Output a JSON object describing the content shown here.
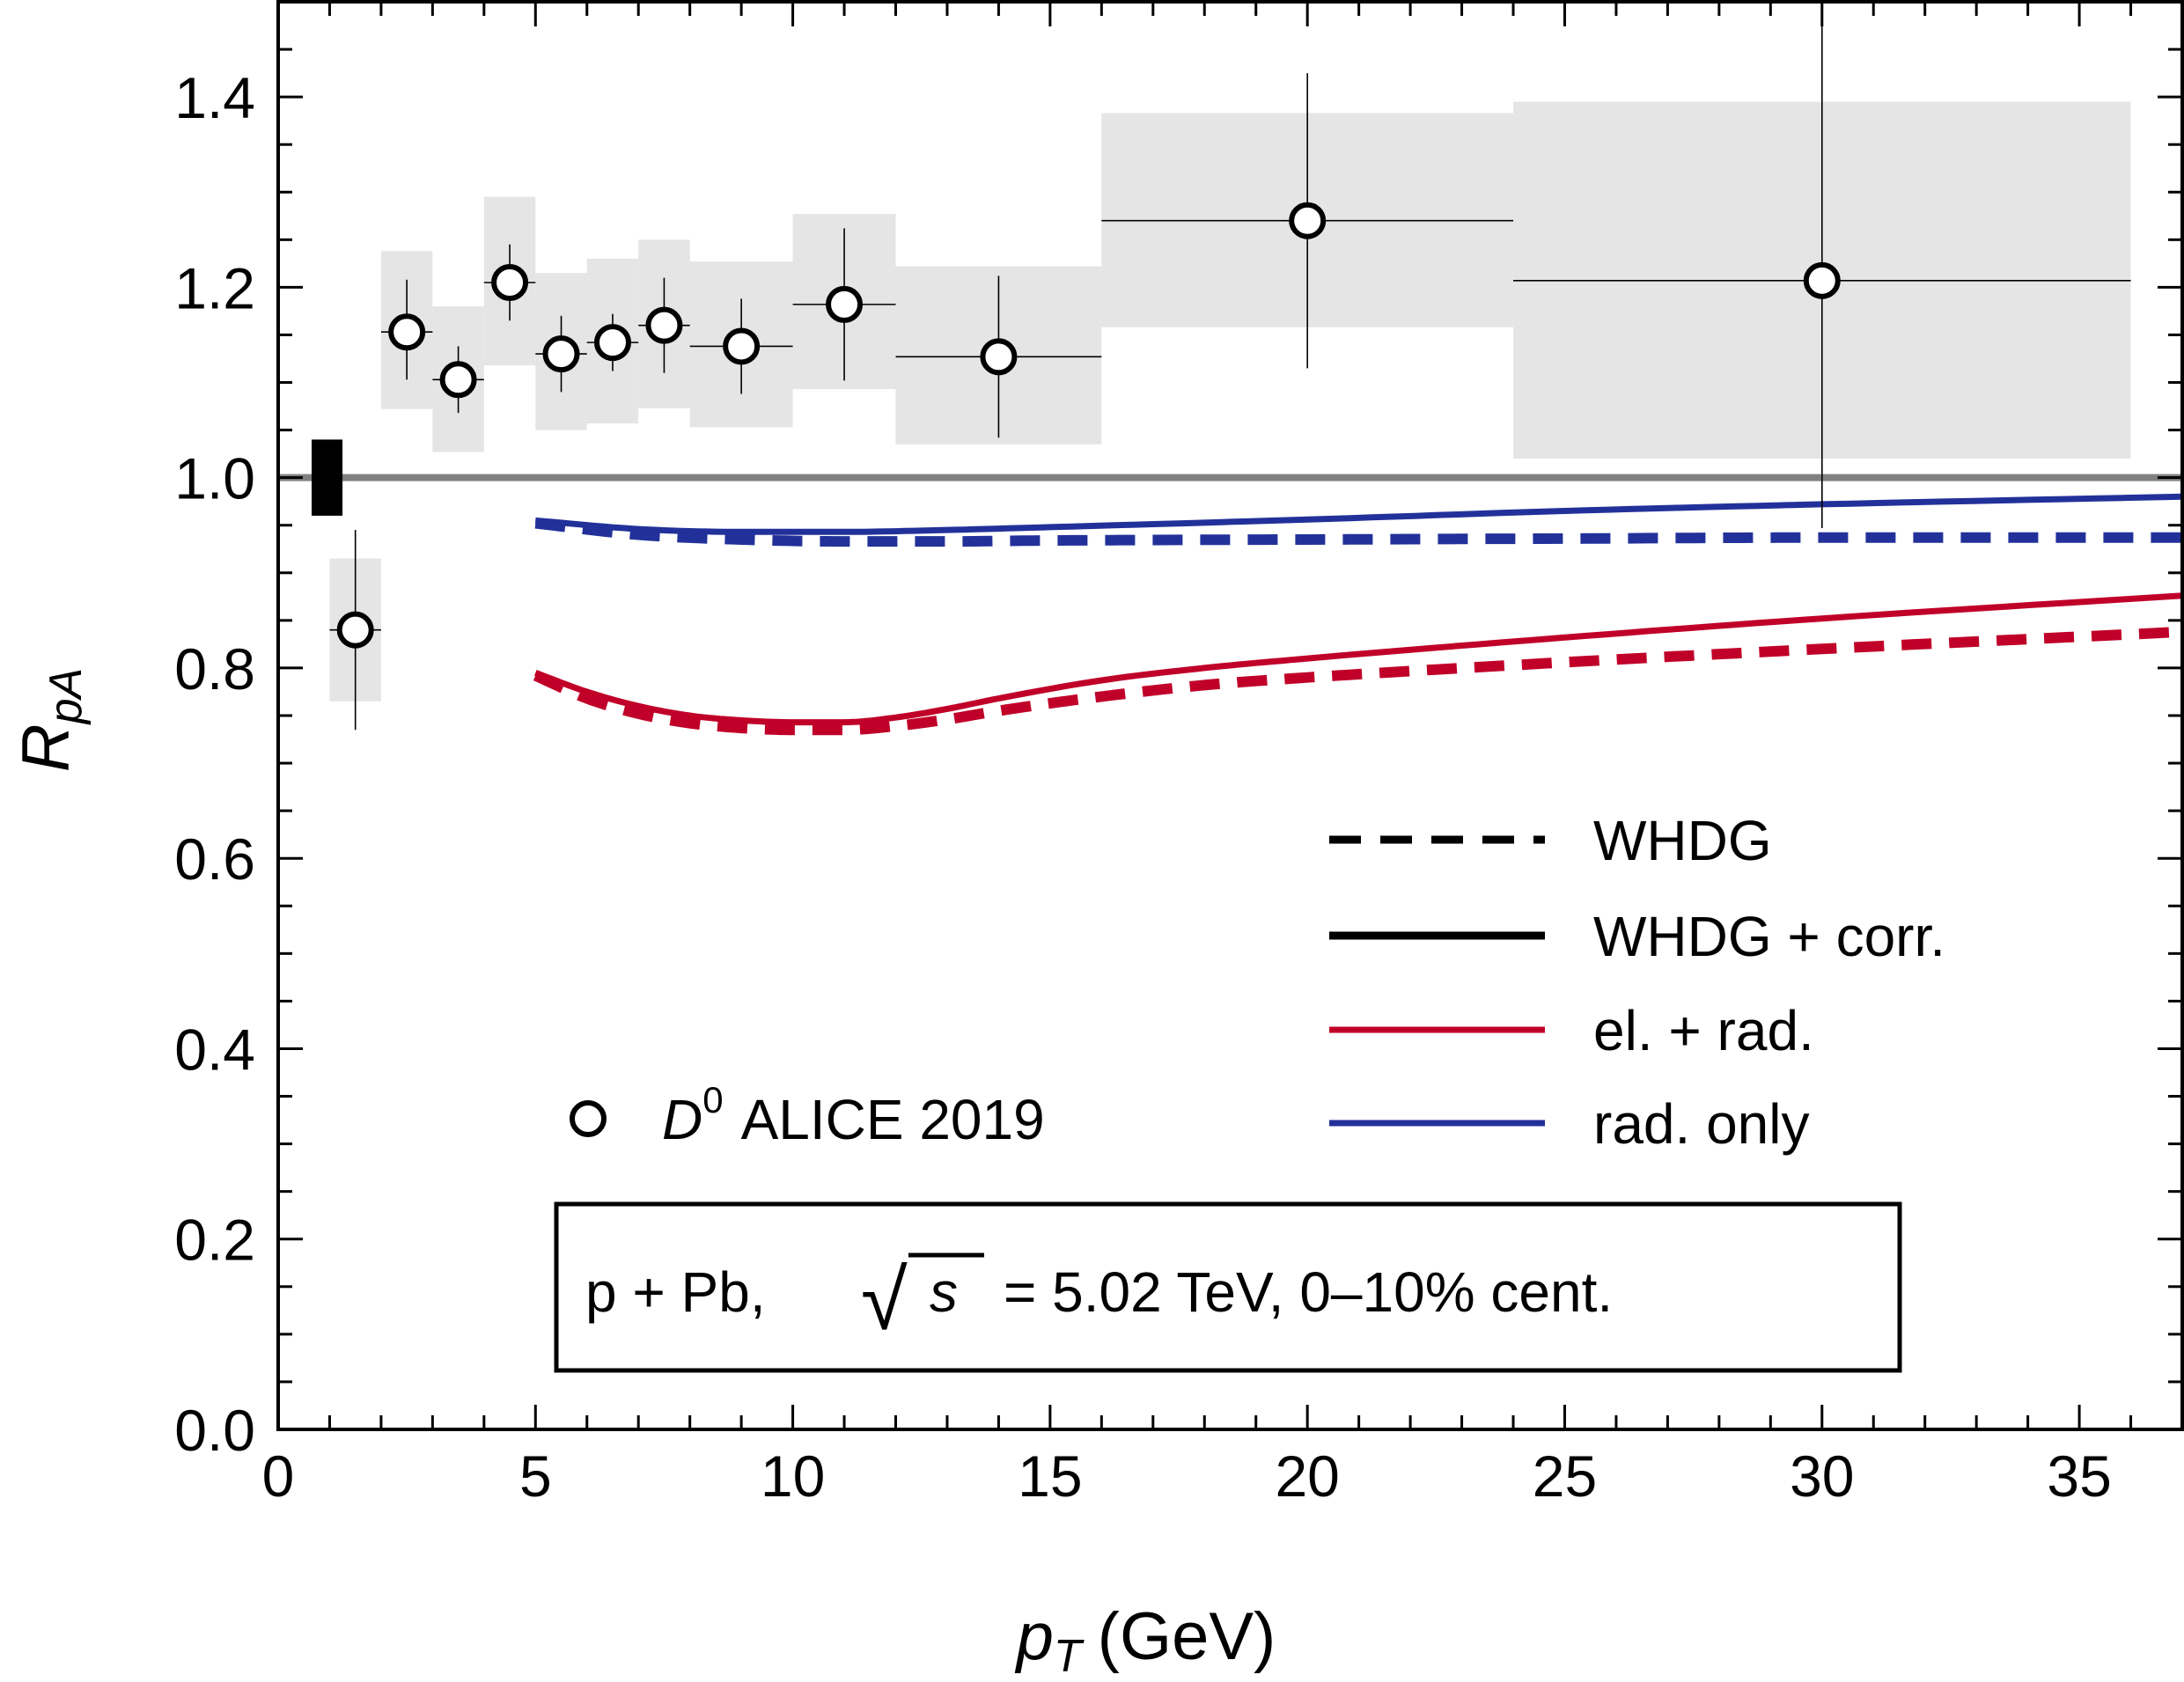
{
  "chart_data": {
    "type": "line",
    "xlabel": "p_T (GeV)",
    "xlabel_parts": {
      "main": "p",
      "sub": "T",
      "unit": "(GeV)"
    },
    "ylabel": "R_pA",
    "ylabel_parts": {
      "main": "R",
      "sub": "pA"
    },
    "xlim": [
      0,
      37
    ],
    "ylim": [
      0,
      1.5
    ],
    "x_ticks": [
      0,
      5,
      10,
      15,
      20,
      25,
      30,
      35
    ],
    "x_tick_labels": [
      "0",
      "5",
      "10",
      "15",
      "20",
      "25",
      "30",
      "35"
    ],
    "y_ticks": [
      0.0,
      0.2,
      0.4,
      0.6,
      0.8,
      1.0,
      1.2,
      1.4
    ],
    "y_tick_labels": [
      "0.0",
      "0.2",
      "0.4",
      "0.6",
      "0.8",
      "1.0",
      "1.2",
      "1.4"
    ],
    "grid": false,
    "reference_line": {
      "y": 1.0,
      "color": "#808080"
    },
    "normalization_box": {
      "x": [
        0.65,
        1.25
      ],
      "y": [
        0.96,
        1.04
      ],
      "color": "#000000"
    },
    "series": [
      {
        "name": "D0 ALICE 2019",
        "type": "scatter",
        "marker": "open-circle",
        "points": [
          {
            "x": 1.5,
            "y": 0.84,
            "xerr": [
              0.5,
              0.5
            ],
            "yerr": [
              0.105,
              0.105
            ],
            "sys": [
              0.765,
              0.915
            ]
          },
          {
            "x": 2.5,
            "y": 1.153,
            "xerr": [
              0.5,
              0.5
            ],
            "yerr": [
              0.05,
              0.055
            ],
            "sys": [
              1.072,
              1.238
            ]
          },
          {
            "x": 3.5,
            "y": 1.103,
            "xerr": [
              0.5,
              0.5
            ],
            "yerr": [
              0.035,
              0.035
            ],
            "sys": [
              1.027,
              1.18
            ]
          },
          {
            "x": 4.5,
            "y": 1.205,
            "xerr": [
              0.5,
              0.5
            ],
            "yerr": [
              0.04,
              0.04
            ],
            "sys": [
              1.118,
              1.295
            ]
          },
          {
            "x": 5.5,
            "y": 1.13,
            "xerr": [
              0.5,
              0.5
            ],
            "yerr": [
              0.04,
              0.04
            ],
            "sys": [
              1.05,
              1.215
            ]
          },
          {
            "x": 6.5,
            "y": 1.142,
            "xerr": [
              0.5,
              0.5
            ],
            "yerr": [
              0.03,
              0.03
            ],
            "sys": [
              1.057,
              1.23
            ]
          },
          {
            "x": 7.5,
            "y": 1.16,
            "xerr": [
              0.5,
              0.5
            ],
            "yerr": [
              0.05,
              0.05
            ],
            "sys": [
              1.073,
              1.25
            ]
          },
          {
            "x": 9.0,
            "y": 1.138,
            "xerr": [
              1.0,
              1.0
            ],
            "yerr": [
              0.05,
              0.05
            ],
            "sys": [
              1.053,
              1.227
            ]
          },
          {
            "x": 11.0,
            "y": 1.182,
            "xerr": [
              1.0,
              1.0
            ],
            "yerr": [
              0.08,
              0.08
            ],
            "sys": [
              1.093,
              1.277
            ]
          },
          {
            "x": 14.0,
            "y": 1.127,
            "xerr": [
              2.0,
              2.0
            ],
            "yerr": [
              0.085,
              0.085
            ],
            "sys": [
              1.035,
              1.222
            ]
          },
          {
            "x": 20.0,
            "y": 1.27,
            "xerr": [
              4.0,
              4.0
            ],
            "yerr": [
              0.155,
              0.155
            ],
            "sys": [
              1.158,
              1.383
            ]
          },
          {
            "x": 30.0,
            "y": 1.207,
            "xerr": [
              6.0,
              6.0
            ],
            "yerr": [
              0.26,
              0.315
            ],
            "sys": [
              1.02,
              1.395
            ]
          }
        ]
      },
      {
        "name": "el. + rad. (WHDG + corr.)",
        "type": "line",
        "style": "solid",
        "color": "#c00028",
        "x": [
          5,
          6,
          7,
          8,
          9,
          10,
          11,
          12,
          13,
          14,
          16,
          18,
          20,
          25,
          30,
          37
        ],
        "y": [
          0.795,
          0.775,
          0.76,
          0.75,
          0.745,
          0.743,
          0.743,
          0.748,
          0.757,
          0.768,
          0.787,
          0.8,
          0.81,
          0.832,
          0.852,
          0.876
        ]
      },
      {
        "name": "el. + rad. (WHDG)",
        "type": "line",
        "style": "dashed",
        "color": "#c00028",
        "x": [
          5,
          6,
          7,
          8,
          9,
          10,
          11,
          12,
          13,
          14,
          16,
          18,
          20,
          25,
          30,
          37
        ],
        "y": [
          0.792,
          0.768,
          0.752,
          0.742,
          0.737,
          0.735,
          0.735,
          0.739,
          0.746,
          0.755,
          0.77,
          0.782,
          0.79,
          0.806,
          0.82,
          0.838
        ]
      },
      {
        "name": "rad. only (WHDG + corr.)",
        "type": "line",
        "style": "solid",
        "color": "#22319a",
        "x": [
          5,
          7,
          9,
          11,
          13,
          15,
          20,
          25,
          30,
          37
        ],
        "y": [
          0.955,
          0.946,
          0.943,
          0.943,
          0.945,
          0.948,
          0.956,
          0.965,
          0.972,
          0.98
        ]
      },
      {
        "name": "rad. only (WHDG)",
        "type": "line",
        "style": "dashed",
        "color": "#22319a",
        "x": [
          5,
          7,
          9,
          11,
          13,
          15,
          20,
          25,
          30,
          37
        ],
        "y": [
          0.952,
          0.94,
          0.935,
          0.933,
          0.933,
          0.934,
          0.935,
          0.936,
          0.937,
          0.937
        ]
      }
    ],
    "legend": {
      "position": "lower-right",
      "entries": [
        {
          "label": "WHDG",
          "style": "dashed",
          "color": "#000000"
        },
        {
          "label": "WHDG + corr.",
          "style": "solid",
          "color": "#000000"
        },
        {
          "label": "el. + rad.",
          "style": "solid",
          "color": "#c00028"
        },
        {
          "label": "rad. only",
          "style": "solid",
          "color": "#22319a"
        }
      ],
      "data_entry": {
        "label_main": "D",
        "label_sup": "0",
        "label_rest": "ALICE 2019",
        "marker": "open-circle"
      }
    },
    "annotation": {
      "prefix": "p + Pb,",
      "sqrt_symbol": "√",
      "sqrt_var": "s",
      "suffix": "= 5.02 TeV, 0–10% cent."
    }
  }
}
